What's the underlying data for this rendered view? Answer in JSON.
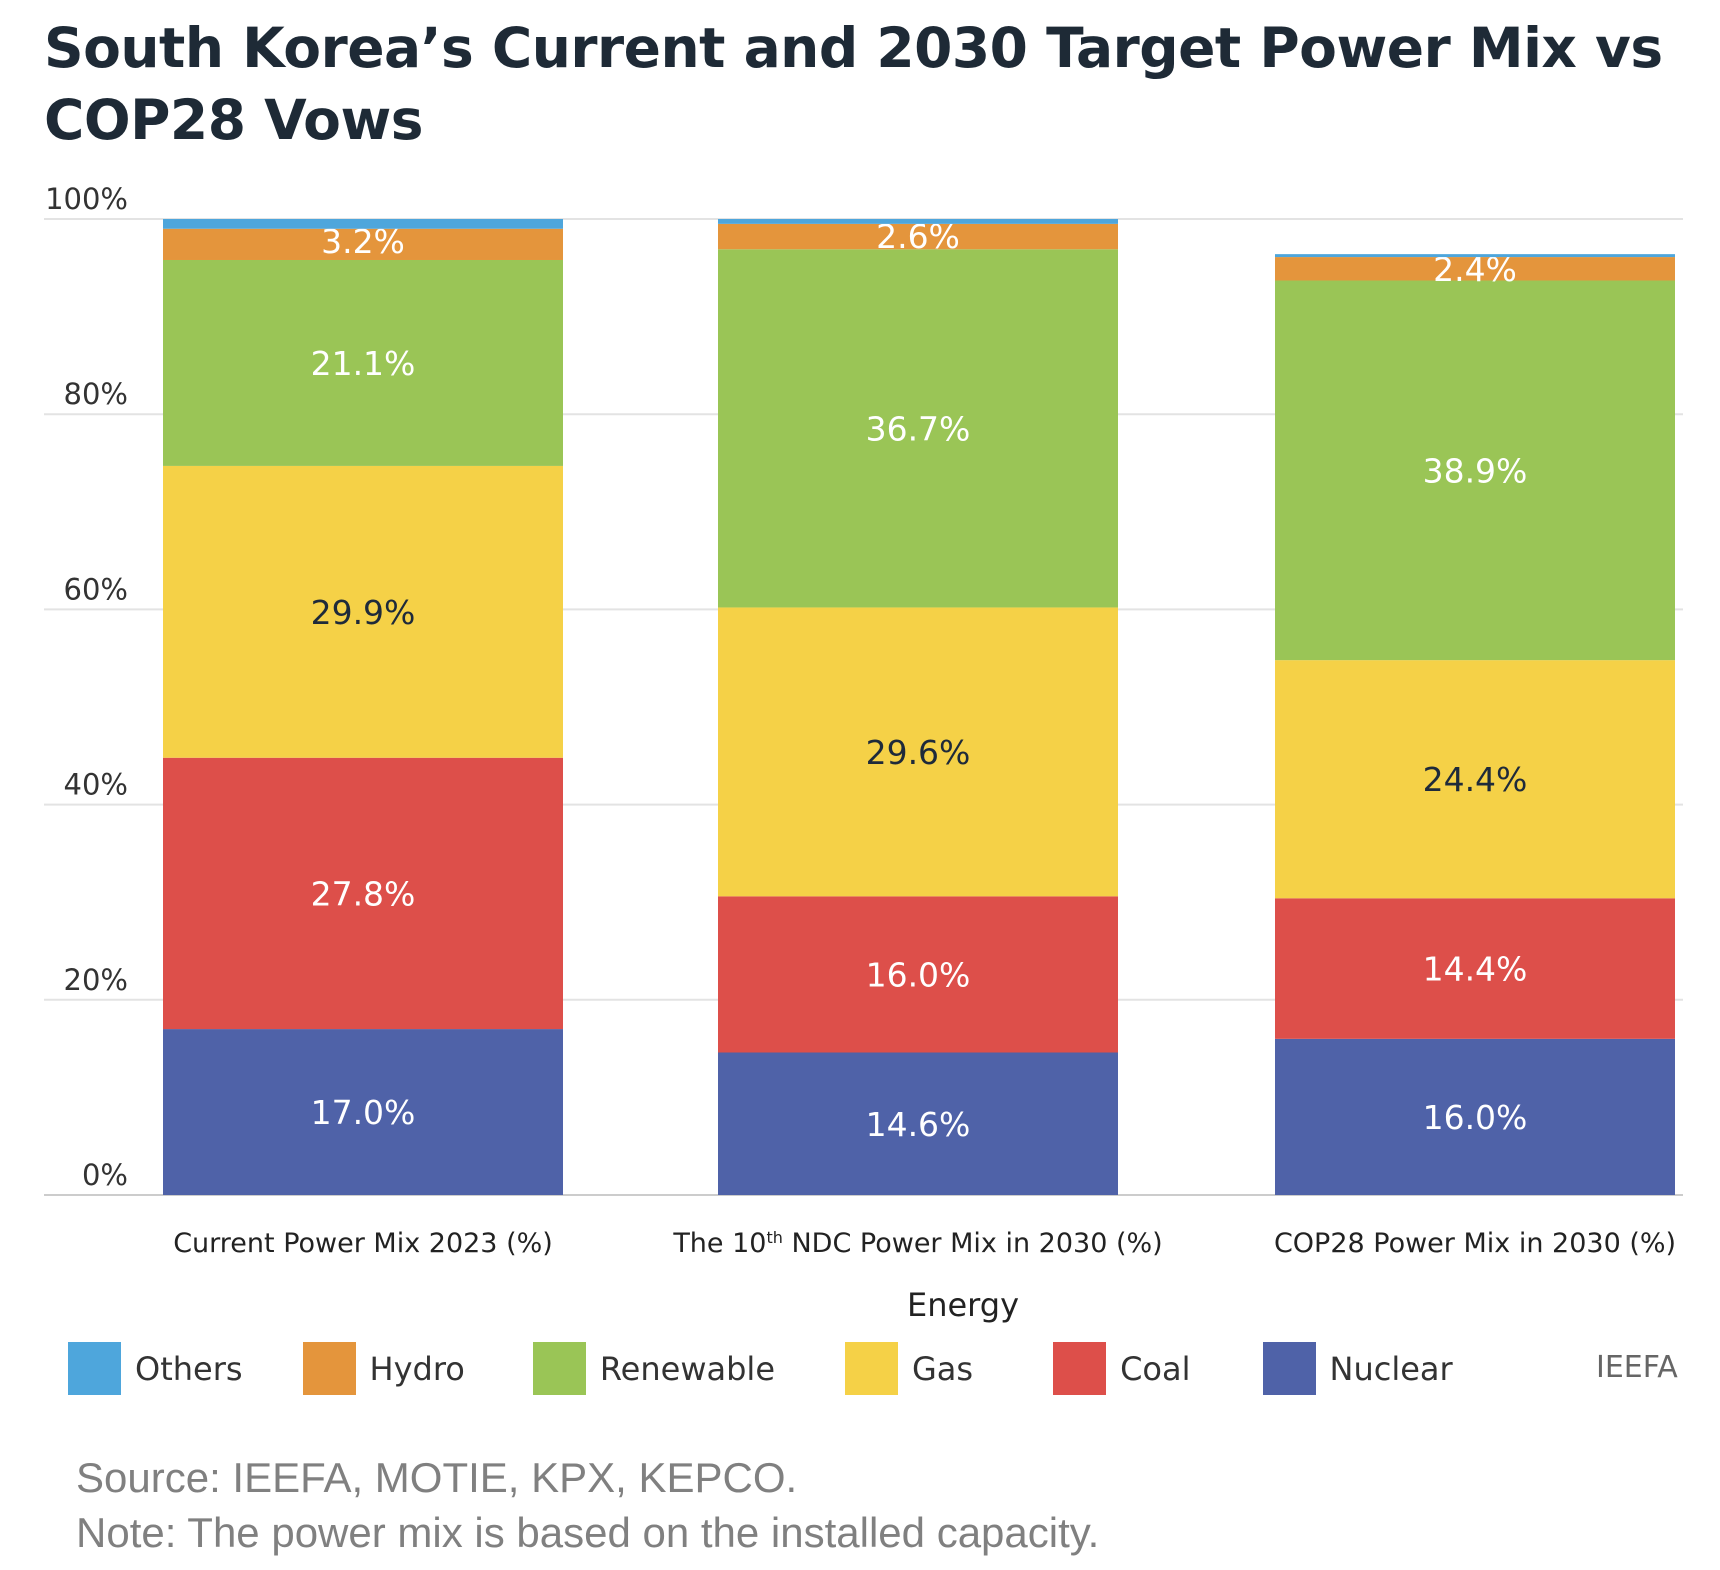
{
  "title": "South Korea’s Current and 2030 Target Power Mix vs COP28 Vows",
  "chart_data": {
    "type": "bar",
    "stacked": true,
    "title": "South Korea’s Current and 2030 Target Power Mix vs COP28 Vows",
    "xlabel": "Energy",
    "ylabel": "",
    "categories": [
      "Current Power Mix 2023 (%)",
      "The 10th NDC Power Mix in 2030 (%)",
      "COP28 Power Mix in 2030 (%)"
    ],
    "ylim": [
      0,
      100
    ],
    "yticks": [
      "0%",
      "20%",
      "40%",
      "60%",
      "80%",
      "100%"
    ],
    "grid": true,
    "legend": "bottom",
    "series": [
      {
        "name": "Nuclear",
        "color": "#4f62a8",
        "values": [
          17.0,
          14.6,
          16.0
        ],
        "labels": [
          "17.0%",
          "14.6%",
          "16.0%"
        ]
      },
      {
        "name": "Coal",
        "color": "#dd4f4a",
        "values": [
          27.8,
          16.0,
          14.4
        ],
        "labels": [
          "27.8%",
          "16.0%",
          "14.4%"
        ]
      },
      {
        "name": "Gas",
        "color": "#f5d147",
        "values": [
          29.9,
          29.6,
          24.4
        ],
        "labels": [
          "29.9%",
          "29.6%",
          "24.4%"
        ]
      },
      {
        "name": "Renewable",
        "color": "#9ac556",
        "values": [
          21.1,
          36.7,
          38.9
        ],
        "labels": [
          "21.1%",
          "36.7%",
          "38.9%"
        ]
      },
      {
        "name": "Hydro",
        "color": "#e4953c",
        "values": [
          3.2,
          2.6,
          2.4
        ],
        "labels": [
          "3.2%",
          "2.6%",
          "2.4%"
        ]
      },
      {
        "name": "Others",
        "color": "#4ea6dc",
        "values": [
          1.0,
          0.5,
          0.3
        ],
        "labels": [
          "",
          "",
          ""
        ]
      }
    ]
  },
  "legend_order": [
    "Others",
    "Hydro",
    "Renewable",
    "Gas",
    "Coal",
    "Nuclear"
  ],
  "credit": "IEEFA",
  "source": "Source: IEEFA, MOTIE, KPX, KEPCO.",
  "note": "Note: The power mix is based on the installed capacity."
}
